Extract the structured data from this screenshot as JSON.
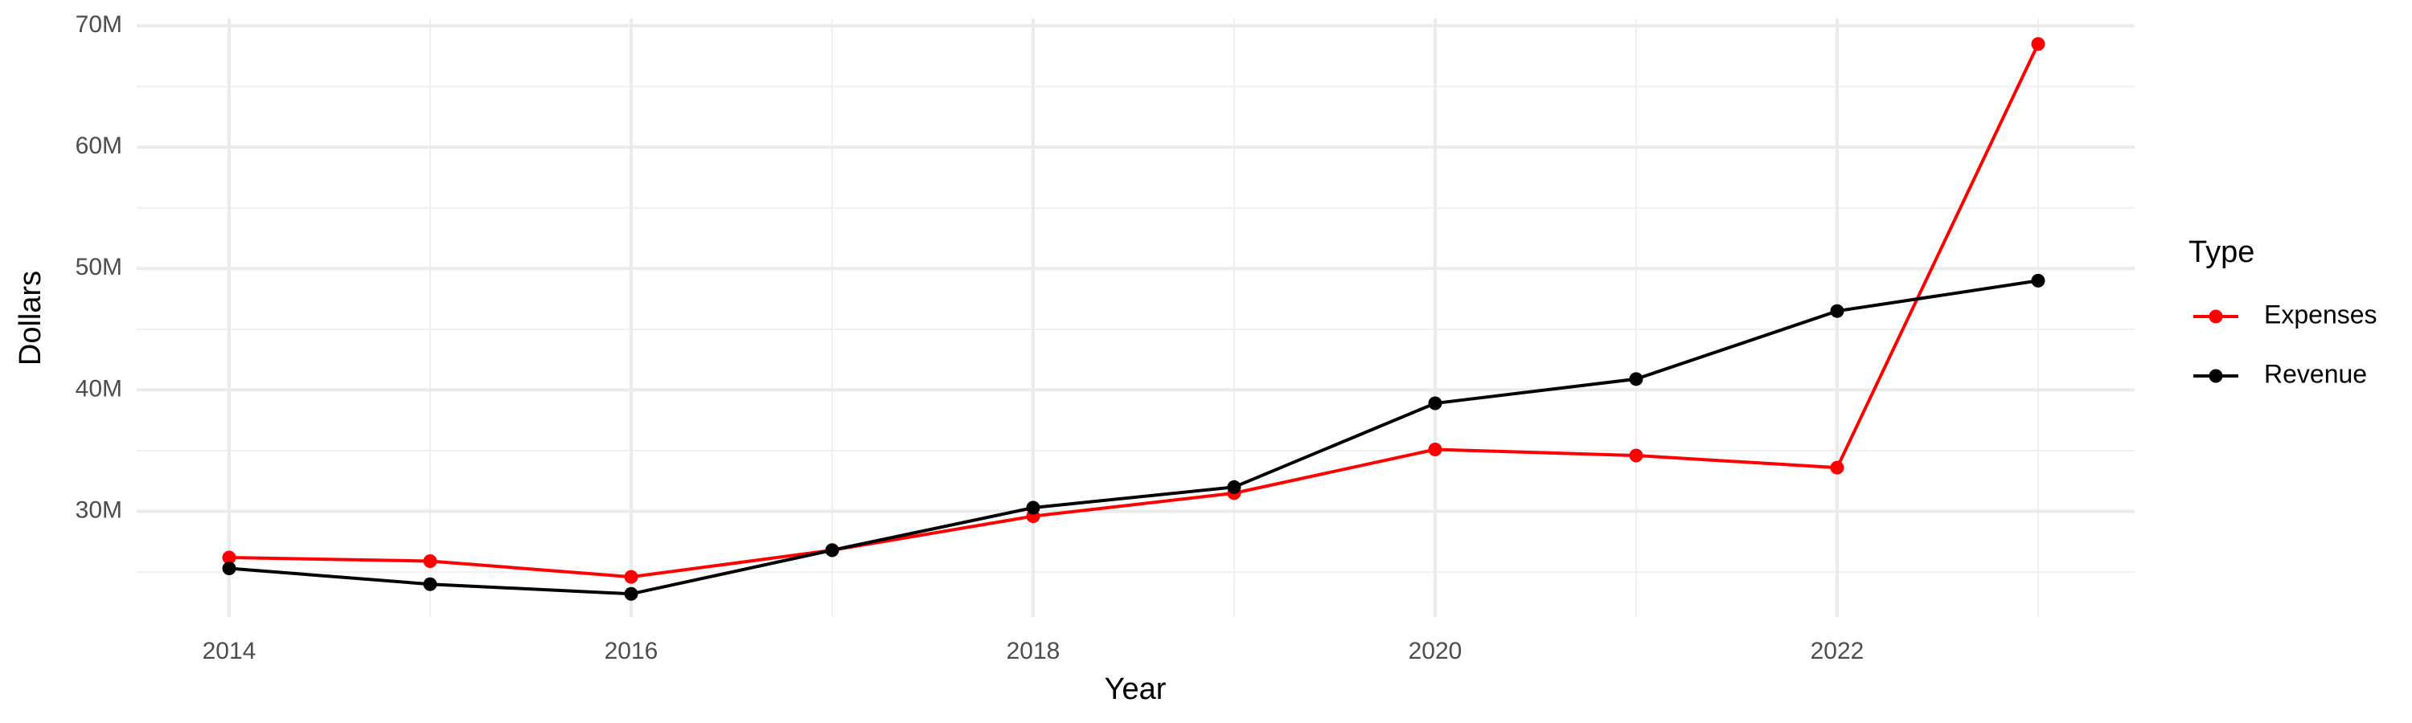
{
  "chart_data": {
    "type": "line",
    "x_label": "Year",
    "y_label": "Dollars",
    "legend_title": "Type",
    "x": [
      2014,
      2015,
      2016,
      2017,
      2018,
      2019,
      2020,
      2021,
      2022,
      2023
    ],
    "series": [
      {
        "name": "Expenses",
        "color": "#ff0000",
        "values": [
          26200000,
          25900000,
          24600000,
          26800000,
          29600000,
          31500000,
          35100000,
          34600000,
          33600000,
          68500000
        ]
      },
      {
        "name": "Revenue",
        "color": "#000000",
        "values": [
          25300000,
          24000000,
          23200000,
          26800000,
          30300000,
          32000000,
          38900000,
          40900000,
          46500000,
          49000000
        ]
      }
    ],
    "xlim": [
      2013.54,
      2023.48
    ],
    "ylim": [
      21300000,
      70600000
    ],
    "xticks": [
      2014,
      2016,
      2018,
      2020,
      2022
    ],
    "yticks": [
      {
        "value": 30000000,
        "label": "30M"
      },
      {
        "value": 40000000,
        "label": "40M"
      },
      {
        "value": 50000000,
        "label": "50M"
      },
      {
        "value": 60000000,
        "label": "60M"
      },
      {
        "value": 70000000,
        "label": "70M"
      }
    ],
    "grid": true,
    "legend": "right"
  }
}
